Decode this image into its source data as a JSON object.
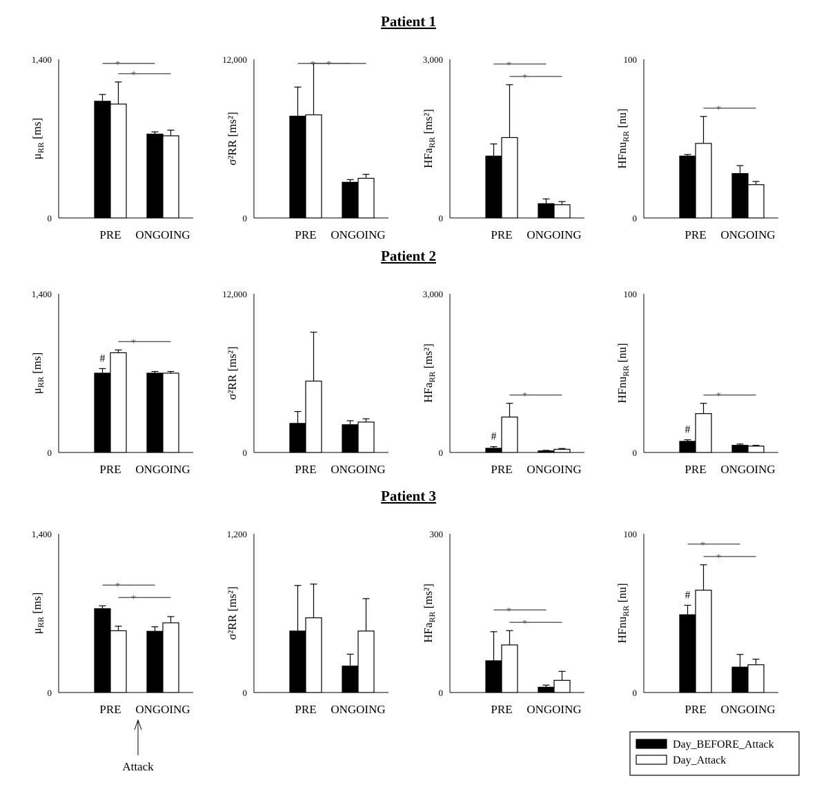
{
  "patients": [
    {
      "title": "Patient 1",
      "chart_data": [
        {
          "type": "bar",
          "ylabel_main": "μ",
          "ylabel_sub": "RR",
          "ylabel_unit": " [ms]",
          "ylim": [
            0,
            1400
          ],
          "ytick_labels": [
            "0",
            "1,400"
          ],
          "categories": [
            "PRE",
            "ONGOING"
          ],
          "series": [
            {
              "name": "Day_BEFORE_Attack",
              "values": [
                1030,
                740
              ],
              "errors": [
                60,
                20
              ]
            },
            {
              "name": "Day_Attack",
              "values": [
                1005,
                725
              ],
              "errors": [
                195,
                50
              ]
            }
          ],
          "sig": [
            {
              "from": [
                0,
                0
              ],
              "to": [
                1,
                0
              ],
              "label": "*"
            },
            {
              "from": [
                0,
                1
              ],
              "to": [
                1,
                1
              ],
              "label": "*"
            }
          ],
          "hash": []
        },
        {
          "type": "bar",
          "ylabel_main": "σ²RR",
          "ylabel_sub": "",
          "ylabel_unit": " [ms²]",
          "ylim": [
            0,
            12000
          ],
          "ytick_labels": [
            "0",
            "12,000"
          ],
          "categories": [
            "PRE",
            "ONGOING"
          ],
          "series": [
            {
              "name": "Day_BEFORE_Attack",
              "values": [
                7700,
                2700
              ],
              "errors": [
                2200,
                200
              ]
            },
            {
              "name": "Day_Attack",
              "values": [
                7800,
                3000
              ],
              "errors": [
                3900,
                300
              ]
            }
          ],
          "sig": [
            {
              "from": [
                0,
                0
              ],
              "to": [
                1,
                0
              ],
              "label": "*"
            },
            {
              "from": [
                0,
                1
              ],
              "to": [
                1,
                1
              ],
              "label": "*"
            }
          ],
          "hash": []
        },
        {
          "type": "bar",
          "ylabel_main": "HFa",
          "ylabel_sub": "RR",
          "ylabel_unit": " [ms²]",
          "ylim": [
            0,
            3000
          ],
          "ytick_labels": [
            "0",
            "3,000"
          ],
          "categories": [
            "PRE",
            "ONGOING"
          ],
          "series": [
            {
              "name": "Day_BEFORE_Attack",
              "values": [
                1170,
                270
              ],
              "errors": [
                230,
                90
              ]
            },
            {
              "name": "Day_Attack",
              "values": [
                1520,
                250
              ],
              "errors": [
                1000,
                60
              ]
            }
          ],
          "sig": [
            {
              "from": [
                0,
                0
              ],
              "to": [
                1,
                0
              ],
              "label": "*"
            },
            {
              "from": [
                0,
                1
              ],
              "to": [
                1,
                1
              ],
              "label": "*"
            }
          ],
          "hash": []
        },
        {
          "type": "bar",
          "ylabel_main": "HFnu",
          "ylabel_sub": "RR",
          "ylabel_unit": " [nu]",
          "ylim": [
            0,
            100
          ],
          "ytick_labels": [
            "0",
            "100"
          ],
          "categories": [
            "PRE",
            "ONGOING"
          ],
          "series": [
            {
              "name": "Day_BEFORE_Attack",
              "values": [
                39,
                28
              ],
              "errors": [
                1,
                5
              ]
            },
            {
              "name": "Day_Attack",
              "values": [
                47,
                21
              ],
              "errors": [
                17,
                2
              ]
            }
          ],
          "sig": [
            {
              "from": [
                0,
                1
              ],
              "to": [
                1,
                1
              ],
              "label": "*"
            }
          ],
          "hash": []
        }
      ]
    },
    {
      "title": "Patient 2",
      "chart_data": [
        {
          "type": "bar",
          "ylabel_main": "μ",
          "ylabel_sub": "RR",
          "ylabel_unit": " [ms]",
          "ylim": [
            0,
            1400
          ],
          "ytick_labels": [
            "0",
            "1,400"
          ],
          "categories": [
            "PRE",
            "ONGOING"
          ],
          "series": [
            {
              "name": "Day_BEFORE_Attack",
              "values": [
                700,
                700
              ],
              "errors": [
                40,
                15
              ]
            },
            {
              "name": "Day_Attack",
              "values": [
                880,
                700
              ],
              "errors": [
                25,
                15
              ]
            }
          ],
          "sig": [
            {
              "from": [
                0,
                1
              ],
              "to": [
                1,
                1
              ],
              "label": "*"
            }
          ],
          "hash": [
            {
              "category": 0,
              "label": "#"
            }
          ]
        },
        {
          "type": "bar",
          "ylabel_main": "σ²RR",
          "ylabel_sub": "",
          "ylabel_unit": " [ms²]",
          "ylim": [
            0,
            12000
          ],
          "ytick_labels": [
            "0",
            "12,000"
          ],
          "categories": [
            "PRE",
            "ONGOING"
          ],
          "series": [
            {
              "name": "Day_BEFORE_Attack",
              "values": [
                2200,
                2100
              ],
              "errors": [
                900,
                300
              ]
            },
            {
              "name": "Day_Attack",
              "values": [
                5400,
                2300
              ],
              "errors": [
                3700,
                250
              ]
            }
          ],
          "sig": [],
          "hash": []
        },
        {
          "type": "bar",
          "ylabel_main": "HFa",
          "ylabel_sub": "RR",
          "ylabel_unit": " [ms²]",
          "ylim": [
            0,
            3000
          ],
          "ytick_labels": [
            "0",
            "3,000"
          ],
          "categories": [
            "PRE",
            "ONGOING"
          ],
          "series": [
            {
              "name": "Day_BEFORE_Attack",
              "values": [
                80,
                30
              ],
              "errors": [
                30,
                10
              ]
            },
            {
              "name": "Day_Attack",
              "values": [
                670,
                60
              ],
              "errors": [
                260,
                15
              ]
            }
          ],
          "sig": [
            {
              "from": [
                0,
                1
              ],
              "to": [
                1,
                1
              ],
              "label": "*"
            }
          ],
          "hash": [
            {
              "category": 0,
              "label": "#"
            }
          ]
        },
        {
          "type": "bar",
          "ylabel_main": "HFnu",
          "ylabel_sub": "RR",
          "ylabel_unit": " [nu]",
          "ylim": [
            0,
            100
          ],
          "ytick_labels": [
            "0",
            "100"
          ],
          "categories": [
            "PRE",
            "ONGOING"
          ],
          "series": [
            {
              "name": "Day_BEFORE_Attack",
              "values": [
                7,
                4.5
              ],
              "errors": [
                1,
                0.8
              ]
            },
            {
              "name": "Day_Attack",
              "values": [
                24.5,
                4
              ],
              "errors": [
                6.5,
                0.5
              ]
            }
          ],
          "sig": [
            {
              "from": [
                0,
                1
              ],
              "to": [
                1,
                1
              ],
              "label": "*"
            }
          ],
          "hash": [
            {
              "category": 0,
              "label": "#"
            }
          ]
        }
      ]
    },
    {
      "title": "Patient 3",
      "chart_data": [
        {
          "type": "bar",
          "ylabel_main": "μ",
          "ylabel_sub": "RR",
          "ylabel_unit": " [ms]",
          "ylim": [
            0,
            1400
          ],
          "ytick_labels": [
            "0",
            "1,400"
          ],
          "categories": [
            "PRE",
            "ONGOING"
          ],
          "series": [
            {
              "name": "Day_BEFORE_Attack",
              "values": [
                740,
                540
              ],
              "errors": [
                25,
                40
              ]
            },
            {
              "name": "Day_Attack",
              "values": [
                545,
                615
              ],
              "errors": [
                40,
                55
              ]
            }
          ],
          "sig": [
            {
              "from": [
                0,
                0
              ],
              "to": [
                1,
                0
              ],
              "label": "*"
            },
            {
              "from": [
                0,
                1
              ],
              "to": [
                1,
                1
              ],
              "label": "*"
            }
          ],
          "hash": []
        },
        {
          "type": "bar",
          "ylabel_main": "σ²RR",
          "ylabel_sub": "",
          "ylabel_unit": " [ms²]",
          "ylim": [
            0,
            1200
          ],
          "ytick_labels": [
            "0",
            "1,200"
          ],
          "categories": [
            "PRE",
            "ONGOING"
          ],
          "series": [
            {
              "name": "Day_BEFORE_Attack",
              "values": [
                465,
                200
              ],
              "errors": [
                345,
                90
              ]
            },
            {
              "name": "Day_Attack",
              "values": [
                565,
                465
              ],
              "errors": [
                255,
                245
              ]
            }
          ],
          "sig": [],
          "hash": []
        },
        {
          "type": "bar",
          "ylabel_main": "HFa",
          "ylabel_sub": "RR",
          "ylabel_unit": " [ms²]",
          "ylim": [
            0,
            300
          ],
          "ytick_labels": [
            "0",
            "300"
          ],
          "categories": [
            "PRE",
            "ONGOING"
          ],
          "series": [
            {
              "name": "Day_BEFORE_Attack",
              "values": [
                60,
                10
              ],
              "errors": [
                55,
                4
              ]
            },
            {
              "name": "Day_Attack",
              "values": [
                90,
                23
              ],
              "errors": [
                27,
                17
              ]
            }
          ],
          "sig": [
            {
              "from": [
                0,
                0
              ],
              "to": [
                1,
                0
              ],
              "label": "*"
            },
            {
              "from": [
                0,
                1
              ],
              "to": [
                1,
                1
              ],
              "label": "*"
            }
          ],
          "hash": []
        },
        {
          "type": "bar",
          "ylabel_main": "HFnu",
          "ylabel_sub": "RR",
          "ylabel_unit": " [nu]",
          "ylim": [
            0,
            100
          ],
          "ytick_labels": [
            "0",
            "100"
          ],
          "categories": [
            "PRE",
            "ONGOING"
          ],
          "series": [
            {
              "name": "Day_BEFORE_Attack",
              "values": [
                49,
                16
              ],
              "errors": [
                6,
                8
              ]
            },
            {
              "name": "Day_Attack",
              "values": [
                64.5,
                17.5
              ],
              "errors": [
                16,
                3.5
              ]
            }
          ],
          "sig": [
            {
              "from": [
                0,
                0
              ],
              "to": [
                1,
                0
              ],
              "label": "*"
            },
            {
              "from": [
                0,
                1
              ],
              "to": [
                1,
                1
              ],
              "label": "*"
            }
          ],
          "hash": [
            {
              "category": 0,
              "label": "#"
            }
          ]
        }
      ]
    }
  ],
  "annotation": {
    "label": "Attack",
    "points_to": "ONGOING"
  },
  "legend": {
    "entries": [
      {
        "label": "Day_BEFORE_Attack",
        "fill": "#000000"
      },
      {
        "label": "Day_Attack",
        "fill": "#ffffff"
      }
    ]
  },
  "colors": {
    "bar_before": "#000000",
    "bar_attack": "#ffffff",
    "significance_line": "#555555"
  }
}
